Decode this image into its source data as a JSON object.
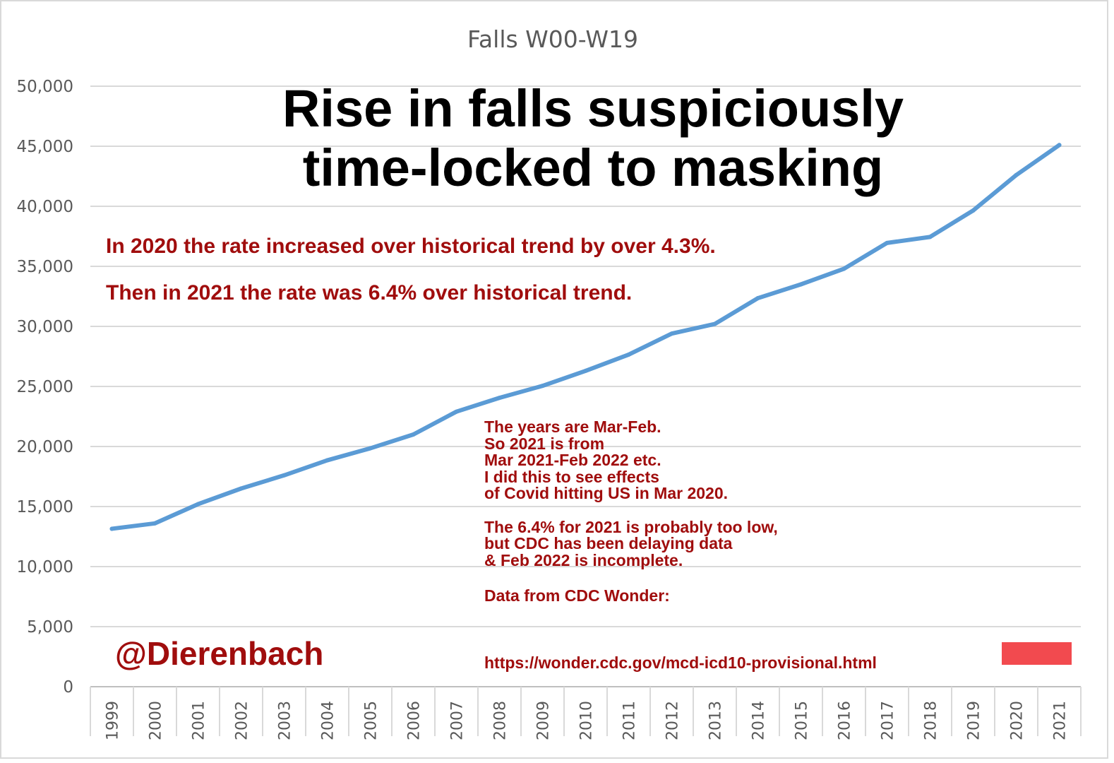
{
  "chart_data": {
    "type": "line",
    "title": "Falls W00-W19",
    "xlabel": "",
    "ylabel": "",
    "ylim": [
      0,
      50000
    ],
    "yticks": [
      "0",
      "5,000",
      "10,000",
      "15,000",
      "20,000",
      "25,000",
      "30,000",
      "35,000",
      "40,000",
      "45,000",
      "50,000"
    ],
    "grid": true,
    "legend": "none",
    "series_color": "#5b9bd5",
    "categories": [
      "1999",
      "2000",
      "2001",
      "2002",
      "2003",
      "2004",
      "2005",
      "2006",
      "2007",
      "2008",
      "2009",
      "2010",
      "2011",
      "2012",
      "2013",
      "2014",
      "2015",
      "2016",
      "2017",
      "2018",
      "2019",
      "2020",
      "2021"
    ],
    "values": [
      13150,
      13600,
      15200,
      16500,
      17600,
      18850,
      19850,
      21000,
      22900,
      24050,
      25050,
      26300,
      27650,
      29400,
      30200,
      32350,
      33500,
      34800,
      36950,
      37450,
      39650,
      42600,
      45100
    ]
  },
  "annotations": {
    "headline_line1": "Rise in falls suspiciously",
    "headline_line2": "time-locked to masking",
    "note1": "In 2020 the rate increased over historical trend by over 4.3%.",
    "note2": "Then in 2021 the rate was 6.4% over historical trend.",
    "small_line1": "The years are Mar-Feb.",
    "small_line2": "So 2021 is from",
    "small_line3": "Mar 2021-Feb 2022 etc.",
    "small_line4": "I did this to see effects",
    "small_line5": "of Covid hitting US in Mar 2020.",
    "small_line6": "The 6.4% for 2021 is probably too low,",
    "small_line7": "but CDC has been delaying data",
    "small_line8": "& Feb 2022 is incomplete.",
    "small_line9": "Data from CDC Wonder:",
    "url": "https://wonder.cdc.gov/mcd-icd10-provisional.html",
    "handle": "@Dierenbach",
    "accent_color": "#a00d0d",
    "box_color": "#f24a4f"
  }
}
